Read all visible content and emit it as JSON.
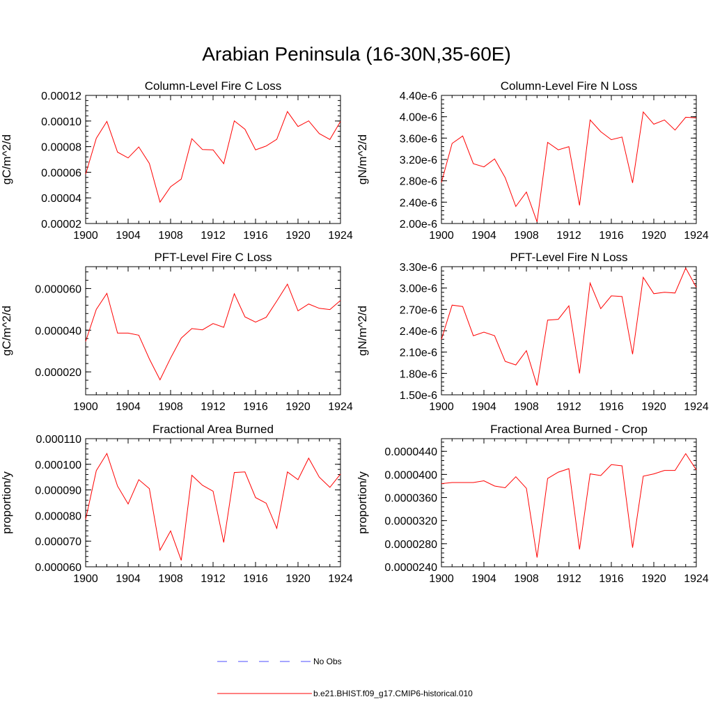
{
  "title": "Arabian Peninsula (16-30N,35-60E)",
  "legend": [
    {
      "label": "No Obs",
      "color": "#4d4dff",
      "dash": true
    },
    {
      "label": "b.e21.BHIST.f09_g17.CMIP6-historical.010",
      "color": "#ff0000",
      "dash": false
    }
  ],
  "colors": {
    "series": "#ff0000",
    "axis": "#000000"
  },
  "chart_data": [
    {
      "type": "line",
      "title": "Column-Level Fire C Loss",
      "ylabel": "gC/m^2/d",
      "xlabel": "",
      "xlim": [
        1900,
        1924
      ],
      "ylim": [
        2e-05,
        0.00012
      ],
      "xticks": [
        1900,
        1904,
        1908,
        1912,
        1916,
        1920,
        1924
      ],
      "yticks": [
        2e-05,
        4e-05,
        6e-05,
        8e-05,
        0.0001,
        0.00012
      ],
      "ytick_labels": [
        "0.00002",
        "0.00004",
        "0.00006",
        "0.00008",
        "0.00010",
        "0.00012"
      ],
      "x": [
        1900,
        1901,
        1902,
        1903,
        1904,
        1905,
        1906,
        1907,
        1908,
        1909,
        1910,
        1911,
        1912,
        1913,
        1914,
        1915,
        1916,
        1917,
        1918,
        1919,
        1920,
        1921,
        1922,
        1923,
        1924
      ],
      "series": [
        {
          "name": "b.e21.BHIST.f09_g17.CMIP6-historical.010",
          "values": [
            5.85e-05,
            8.65e-05,
            9.97e-05,
            7.57e-05,
            7.12e-05,
            7.98e-05,
            6.69e-05,
            3.67e-05,
            4.87e-05,
            5.47e-05,
            8.62e-05,
            7.77e-05,
            7.75e-05,
            6.67e-05,
            0.0001001,
            9.36e-05,
            7.75e-05,
            8.05e-05,
            8.57e-05,
            0.0001074,
            9.57e-05,
            0.0001001,
            9.02e-05,
            8.56e-05,
            9.97e-05
          ]
        }
      ]
    },
    {
      "type": "line",
      "title": "Column-Level Fire N Loss",
      "ylabel": "gN/m^2/d",
      "xlabel": "",
      "xlim": [
        1900,
        1924
      ],
      "ylim": [
        2e-06,
        4.4e-06
      ],
      "xticks": [
        1900,
        1904,
        1908,
        1912,
        1916,
        1920,
        1924
      ],
      "yticks": [
        2e-06,
        2.4e-06,
        2.8e-06,
        3.2e-06,
        3.6e-06,
        4e-06,
        4.4e-06
      ],
      "ytick_labels": [
        "2.00e-6",
        "2.40e-6",
        "2.80e-6",
        "3.20e-6",
        "3.60e-6",
        "4.00e-6",
        "4.40e-6"
      ],
      "x": [
        1900,
        1901,
        1902,
        1903,
        1904,
        1905,
        1906,
        1907,
        1908,
        1909,
        1910,
        1911,
        1912,
        1913,
        1914,
        1915,
        1916,
        1917,
        1918,
        1919,
        1920,
        1921,
        1922,
        1923,
        1924
      ],
      "series": [
        {
          "name": "b.e21.BHIST.f09_g17.CMIP6-historical.010",
          "values": [
            2.77e-06,
            3.5e-06,
            3.64e-06,
            3.12e-06,
            3.06e-06,
            3.21e-06,
            2.86e-06,
            2.32e-06,
            2.59e-06,
            2.03e-06,
            3.52e-06,
            3.38e-06,
            3.44e-06,
            2.34e-06,
            3.94e-06,
            3.72e-06,
            3.57e-06,
            3.62e-06,
            2.76e-06,
            4.09e-06,
            3.86e-06,
            3.94e-06,
            3.75e-06,
            3.99e-06,
            3.98e-06
          ]
        }
      ]
    },
    {
      "type": "line",
      "title": "PFT-Level Fire C Loss",
      "ylabel": "gC/m^2/d",
      "xlabel": "",
      "xlim": [
        1900,
        1924
      ],
      "ylim": [
        9e-06,
        7.05e-05
      ],
      "xticks": [
        1900,
        1904,
        1908,
        1912,
        1916,
        1920,
        1924
      ],
      "yticks": [
        2e-05,
        4e-05,
        6e-05
      ],
      "ytick_labels": [
        "0.000020",
        "0.000040",
        "0.000060"
      ],
      "x": [
        1900,
        1901,
        1902,
        1903,
        1904,
        1905,
        1906,
        1907,
        1908,
        1909,
        1910,
        1911,
        1912,
        1913,
        1914,
        1915,
        1916,
        1917,
        1918,
        1919,
        1920,
        1921,
        1922,
        1923,
        1924
      ],
      "series": [
        {
          "name": "b.e21.BHIST.f09_g17.CMIP6-historical.010",
          "values": [
            3.46e-05,
            5e-05,
            5.77e-05,
            3.86e-05,
            3.86e-05,
            3.76e-05,
            2.62e-05,
            1.62e-05,
            2.66e-05,
            3.62e-05,
            4.08e-05,
            4.02e-05,
            4.32e-05,
            4.14e-05,
            5.75e-05,
            4.64e-05,
            4.39e-05,
            4.62e-05,
            5.4e-05,
            6.21e-05,
            4.93e-05,
            5.26e-05,
            5.05e-05,
            4.99e-05,
            5.43e-05
          ]
        }
      ]
    },
    {
      "type": "line",
      "title": "PFT-Level Fire N Loss",
      "ylabel": "gN/m^2/d",
      "xlabel": "",
      "xlim": [
        1900,
        1924
      ],
      "ylim": [
        1.5e-06,
        3.3e-06
      ],
      "xticks": [
        1900,
        1904,
        1908,
        1912,
        1916,
        1920,
        1924
      ],
      "yticks": [
        1.5e-06,
        1.8e-06,
        2.1e-06,
        2.4e-06,
        2.7e-06,
        3e-06,
        3.3e-06
      ],
      "ytick_labels": [
        "1.50e-6",
        "1.80e-6",
        "2.10e-6",
        "2.40e-6",
        "2.70e-6",
        "3.00e-6",
        "3.30e-6"
      ],
      "x": [
        1900,
        1901,
        1902,
        1903,
        1904,
        1905,
        1906,
        1907,
        1908,
        1909,
        1910,
        1911,
        1912,
        1913,
        1914,
        1915,
        1916,
        1917,
        1918,
        1919,
        1920,
        1921,
        1922,
        1923,
        1924
      ],
      "series": [
        {
          "name": "b.e21.BHIST.f09_g17.CMIP6-historical.010",
          "values": [
            2.28e-06,
            2.76e-06,
            2.74e-06,
            2.33e-06,
            2.38e-06,
            2.33e-06,
            1.97e-06,
            1.92e-06,
            2.12e-06,
            1.63e-06,
            2.55e-06,
            2.56e-06,
            2.75e-06,
            1.8e-06,
            3.07e-06,
            2.71e-06,
            2.89e-06,
            2.88e-06,
            2.07e-06,
            3.15e-06,
            2.92e-06,
            2.94e-06,
            2.93e-06,
            3.28e-06,
            3.01e-06
          ]
        }
      ]
    },
    {
      "type": "line",
      "title": "Fractional Area Burned",
      "ylabel": "proportion/y",
      "xlabel": "",
      "xlim": [
        1900,
        1924
      ],
      "ylim": [
        6e-05,
        0.00011
      ],
      "xticks": [
        1900,
        1904,
        1908,
        1912,
        1916,
        1920,
        1924
      ],
      "yticks": [
        6e-05,
        7e-05,
        8e-05,
        9e-05,
        0.0001,
        0.00011
      ],
      "ytick_labels": [
        "0.000060",
        "0.000070",
        "0.000080",
        "0.000090",
        "0.000100",
        "0.000110"
      ],
      "x": [
        1900,
        1901,
        1902,
        1903,
        1904,
        1905,
        1906,
        1907,
        1908,
        1909,
        1910,
        1911,
        1912,
        1913,
        1914,
        1915,
        1916,
        1917,
        1918,
        1919,
        1920,
        1921,
        1922,
        1923,
        1924
      ],
      "series": [
        {
          "name": "b.e21.BHIST.f09_g17.CMIP6-historical.010",
          "values": [
            7.85e-05,
            9.75e-05,
            0.0001042,
            9.15e-05,
            8.45e-05,
            9.4e-05,
            9.05e-05,
            6.65e-05,
            7.4e-05,
            6.25e-05,
            9.57e-05,
            9.18e-05,
            8.95e-05,
            6.95e-05,
            9.68e-05,
            9.7e-05,
            8.7e-05,
            8.48e-05,
            7.5e-05,
            9.7e-05,
            9.4e-05,
            0.0001024,
            9.5e-05,
            9.1e-05,
            9.62e-05
          ]
        }
      ]
    },
    {
      "type": "line",
      "title": "Fractional Area Burned - Crop",
      "ylabel": "proportion/y",
      "xlabel": "",
      "xlim": [
        1900,
        1924
      ],
      "ylim": [
        2.4e-05,
        4.62e-05
      ],
      "xticks": [
        1900,
        1904,
        1908,
        1912,
        1916,
        1920,
        1924
      ],
      "yticks": [
        2.4e-05,
        2.8e-05,
        3.2e-05,
        3.6e-05,
        4e-05,
        4.4e-05
      ],
      "ytick_labels": [
        "0.0000240",
        "0.0000280",
        "0.0000320",
        "0.0000360",
        "0.0000400",
        "0.0000440"
      ],
      "x": [
        1900,
        1901,
        1902,
        1903,
        1904,
        1905,
        1906,
        1907,
        1908,
        1909,
        1910,
        1911,
        1912,
        1913,
        1914,
        1915,
        1916,
        1917,
        1918,
        1919,
        1920,
        1921,
        1922,
        1923,
        1924
      ],
      "series": [
        {
          "name": "b.e21.BHIST.f09_g17.CMIP6-historical.010",
          "values": [
            3.84e-05,
            3.86e-05,
            3.86e-05,
            3.86e-05,
            3.89e-05,
            3.8e-05,
            3.77e-05,
            3.96e-05,
            3.76e-05,
            2.56e-05,
            3.93e-05,
            4.04e-05,
            4.1e-05,
            2.7e-05,
            4.01e-05,
            3.98e-05,
            4.17e-05,
            4.15e-05,
            2.73e-05,
            3.97e-05,
            4.01e-05,
            4.07e-05,
            4.07e-05,
            4.36e-05,
            4.08e-05
          ]
        }
      ]
    }
  ]
}
